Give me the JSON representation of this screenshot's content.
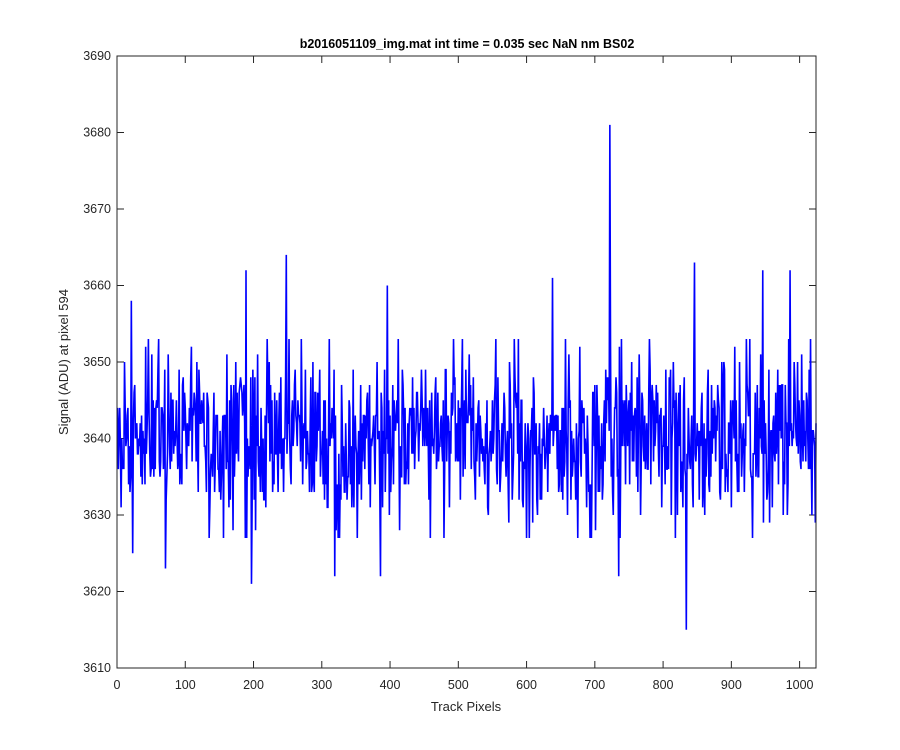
{
  "chart_data": {
    "type": "line",
    "title": "b2016051109_img.mat int time = 0.035 sec  NaN nm BS02",
    "xlabel": "Track Pixels",
    "ylabel": "Signal (ADU) at pixel 594",
    "xlim": [
      0,
      1024
    ],
    "ylim": [
      3610,
      3690
    ],
    "xticks": [
      0,
      100,
      200,
      300,
      400,
      500,
      600,
      700,
      800,
      900,
      1000
    ],
    "yticks": [
      3610,
      3620,
      3630,
      3640,
      3650,
      3660,
      3670,
      3680,
      3690
    ],
    "grid": false,
    "series": [
      {
        "color": "#0000ff",
        "generation": {
          "n_points": 1024,
          "mean": 3640,
          "amplitude": 8,
          "integer_values": true
        },
        "notable_points": [
          {
            "x": 20,
            "y": 3658
          },
          {
            "x": 22,
            "y": 3625
          },
          {
            "x": 70,
            "y": 3623
          },
          {
            "x": 188,
            "y": 3662
          },
          {
            "x": 196,
            "y": 3621
          },
          {
            "x": 247,
            "y": 3664
          },
          {
            "x": 318,
            "y": 3622
          },
          {
            "x": 395,
            "y": 3660
          },
          {
            "x": 385,
            "y": 3622
          },
          {
            "x": 637,
            "y": 3661
          },
          {
            "x": 721,
            "y": 3681
          },
          {
            "x": 734,
            "y": 3622
          },
          {
            "x": 833,
            "y": 3615
          },
          {
            "x": 845,
            "y": 3663
          },
          {
            "x": 945,
            "y": 3662
          },
          {
            "x": 985,
            "y": 3662
          },
          {
            "x": 1015,
            "y": 3653
          }
        ]
      }
    ]
  }
}
